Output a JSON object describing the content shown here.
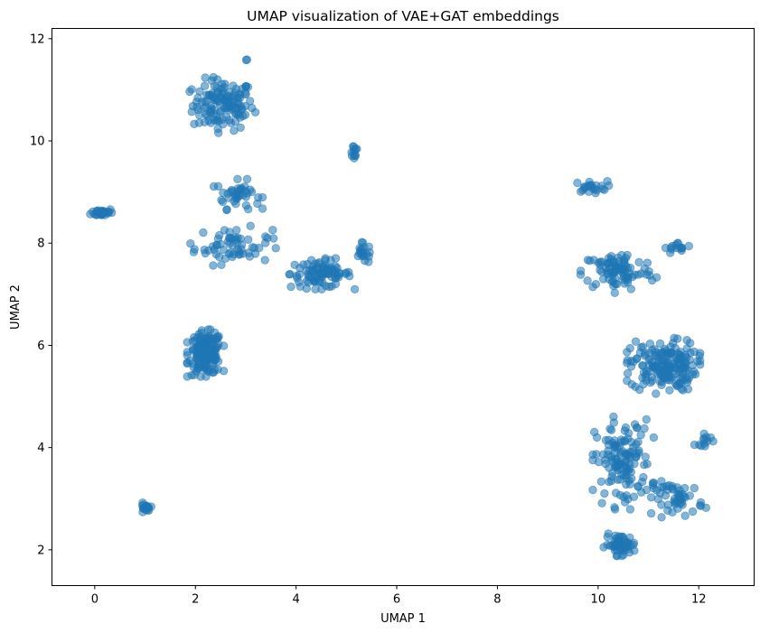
{
  "chart_data": {
    "type": "scatter",
    "title": "UMAP visualization of VAE+GAT embeddings",
    "xlabel": "UMAP 1",
    "ylabel": "UMAP 2",
    "xlim": [
      -0.85,
      13.1
    ],
    "ylim": [
      1.3,
      12.2
    ],
    "xticks": [
      0,
      2,
      4,
      6,
      8,
      10,
      12
    ],
    "yticks": [
      2,
      4,
      6,
      8,
      10,
      12
    ],
    "grid": false,
    "point_color": "#1f77b4",
    "point_alpha": 0.55,
    "series": [
      {
        "clusters": [
          {
            "center": [
              2.55,
              10.7
            ],
            "spread": [
              0.55,
              0.45
            ],
            "count": 130
          },
          {
            "center": [
              3.0,
              11.6
            ],
            "spread": [
              0.04,
              0.03
            ],
            "count": 2
          },
          {
            "center": [
              5.15,
              9.8
            ],
            "spread": [
              0.08,
              0.15
            ],
            "count": 12
          },
          {
            "center": [
              0.15,
              8.6
            ],
            "spread": [
              0.2,
              0.07
            ],
            "count": 30
          },
          {
            "center": [
              2.85,
              8.95
            ],
            "spread": [
              0.4,
              0.25
            ],
            "count": 40
          },
          {
            "center": [
              2.75,
              7.95
            ],
            "spread": [
              0.7,
              0.32
            ],
            "count": 60
          },
          {
            "center": [
              4.5,
              7.4
            ],
            "spread": [
              0.55,
              0.25
            ],
            "count": 90
          },
          {
            "center": [
              5.35,
              7.8
            ],
            "spread": [
              0.18,
              0.18
            ],
            "count": 20
          },
          {
            "center": [
              2.2,
              5.85
            ],
            "spread": [
              0.3,
              0.38
            ],
            "count": 150
          },
          {
            "center": [
              1.0,
              2.8
            ],
            "spread": [
              0.1,
              0.1
            ],
            "count": 18
          },
          {
            "center": [
              9.85,
              9.1
            ],
            "spread": [
              0.3,
              0.1
            ],
            "count": 22
          },
          {
            "center": [
              10.4,
              7.45
            ],
            "spread": [
              0.65,
              0.35
            ],
            "count": 90
          },
          {
            "center": [
              11.6,
              7.9
            ],
            "spread": [
              0.25,
              0.1
            ],
            "count": 15
          },
          {
            "center": [
              11.3,
              5.6
            ],
            "spread": [
              0.6,
              0.45
            ],
            "count": 180
          },
          {
            "center": [
              10.5,
              3.7
            ],
            "spread": [
              0.5,
              0.75
            ],
            "count": 130
          },
          {
            "center": [
              10.45,
              2.1
            ],
            "spread": [
              0.28,
              0.18
            ],
            "count": 55
          },
          {
            "center": [
              11.6,
              3.0
            ],
            "spread": [
              0.45,
              0.3
            ],
            "count": 50
          },
          {
            "center": [
              12.15,
              4.15
            ],
            "spread": [
              0.2,
              0.1
            ],
            "count": 12
          }
        ]
      }
    ]
  }
}
